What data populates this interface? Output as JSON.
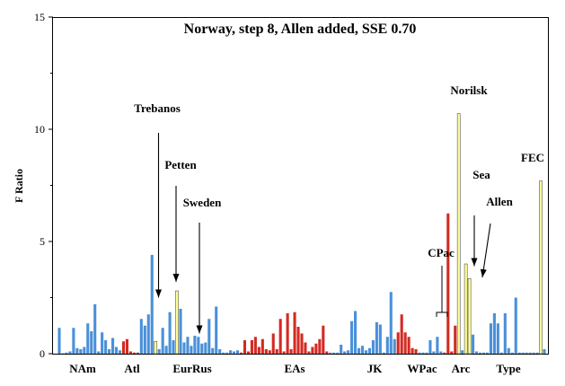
{
  "chart_data": {
    "type": "bar",
    "title": "Norway, step 8, Allen added, SSE 0.70",
    "xlabel": "",
    "ylabel": "F Ratio",
    "ylim": [
      0,
      15
    ],
    "yticks": [
      "0",
      "5",
      "10",
      "15"
    ],
    "grid": false,
    "colors": {
      "blue": "#4a90d9",
      "red": "#d42a22",
      "yellow": "#ffff99"
    },
    "groups": [
      "NAm",
      "Atl",
      "EurRus",
      "EAs",
      "JK",
      "WPac",
      "Arc",
      "Type"
    ],
    "bars": [
      {
        "v": 1.15,
        "c": "blue"
      },
      {
        "v": 0.02,
        "c": "blue"
      },
      {
        "v": 0.05,
        "c": "blue"
      },
      {
        "v": 0.1,
        "c": "blue"
      },
      {
        "v": 1.15,
        "c": "blue"
      },
      {
        "v": 0.25,
        "c": "blue"
      },
      {
        "v": 0.2,
        "c": "blue"
      },
      {
        "v": 0.3,
        "c": "blue"
      },
      {
        "v": 1.35,
        "c": "blue"
      },
      {
        "v": 1.0,
        "c": "blue"
      },
      {
        "v": 2.2,
        "c": "blue"
      },
      {
        "v": 0.1,
        "c": "blue"
      },
      {
        "v": 0.95,
        "c": "blue"
      },
      {
        "v": 0.6,
        "c": "blue"
      },
      {
        "v": 0.2,
        "c": "blue"
      },
      {
        "v": 0.7,
        "c": "blue"
      },
      {
        "v": 0.3,
        "c": "blue"
      },
      {
        "v": 0.15,
        "c": "blue"
      },
      {
        "v": 0.55,
        "c": "red"
      },
      {
        "v": 0.65,
        "c": "red"
      },
      {
        "v": 0.1,
        "c": "red"
      },
      {
        "v": 0.05,
        "c": "red"
      },
      {
        "v": 0.05,
        "c": "red"
      },
      {
        "v": 1.55,
        "c": "blue"
      },
      {
        "v": 1.25,
        "c": "blue"
      },
      {
        "v": 1.75,
        "c": "blue"
      },
      {
        "v": 4.4,
        "c": "blue"
      },
      {
        "v": 0.55,
        "c": "yellow"
      },
      {
        "v": 0.2,
        "c": "blue"
      },
      {
        "v": 1.15,
        "c": "blue"
      },
      {
        "v": 0.35,
        "c": "blue"
      },
      {
        "v": 1.85,
        "c": "blue"
      },
      {
        "v": 0.6,
        "c": "blue"
      },
      {
        "v": 2.8,
        "c": "yellow"
      },
      {
        "v": 2.0,
        "c": "blue"
      },
      {
        "v": 0.5,
        "c": "blue"
      },
      {
        "v": 0.75,
        "c": "blue"
      },
      {
        "v": 0.35,
        "c": "blue"
      },
      {
        "v": 0.8,
        "c": "blue"
      },
      {
        "v": 0.75,
        "c": "blue"
      },
      {
        "v": 0.45,
        "c": "blue"
      },
      {
        "v": 0.5,
        "c": "blue"
      },
      {
        "v": 1.55,
        "c": "blue"
      },
      {
        "v": 0.25,
        "c": "blue"
      },
      {
        "v": 2.1,
        "c": "blue"
      },
      {
        "v": 0.2,
        "c": "blue"
      },
      {
        "v": 0.05,
        "c": "blue"
      },
      {
        "v": 0.05,
        "c": "blue"
      },
      {
        "v": 0.15,
        "c": "blue"
      },
      {
        "v": 0.1,
        "c": "blue"
      },
      {
        "v": 0.15,
        "c": "blue"
      },
      {
        "v": 0.05,
        "c": "red"
      },
      {
        "v": 0.6,
        "c": "red"
      },
      {
        "v": 0.1,
        "c": "red"
      },
      {
        "v": 0.6,
        "c": "red"
      },
      {
        "v": 0.75,
        "c": "red"
      },
      {
        "v": 0.3,
        "c": "red"
      },
      {
        "v": 0.65,
        "c": "red"
      },
      {
        "v": 0.2,
        "c": "red"
      },
      {
        "v": 0.15,
        "c": "red"
      },
      {
        "v": 0.9,
        "c": "red"
      },
      {
        "v": 0.2,
        "c": "red"
      },
      {
        "v": 1.55,
        "c": "red"
      },
      {
        "v": 0.1,
        "c": "red"
      },
      {
        "v": 1.8,
        "c": "red"
      },
      {
        "v": 0.2,
        "c": "red"
      },
      {
        "v": 1.85,
        "c": "red"
      },
      {
        "v": 1.2,
        "c": "red"
      },
      {
        "v": 0.9,
        "c": "red"
      },
      {
        "v": 0.5,
        "c": "red"
      },
      {
        "v": 0.1,
        "c": "red"
      },
      {
        "v": 0.3,
        "c": "red"
      },
      {
        "v": 0.45,
        "c": "red"
      },
      {
        "v": 0.65,
        "c": "red"
      },
      {
        "v": 1.25,
        "c": "red"
      },
      {
        "v": 0.1,
        "c": "red"
      },
      {
        "v": 0.05,
        "c": "blue"
      },
      {
        "v": 0.05,
        "c": "blue"
      },
      {
        "v": 0.05,
        "c": "blue"
      },
      {
        "v": 0.4,
        "c": "blue"
      },
      {
        "v": 0.1,
        "c": "blue"
      },
      {
        "v": 0.15,
        "c": "blue"
      },
      {
        "v": 1.45,
        "c": "blue"
      },
      {
        "v": 1.9,
        "c": "blue"
      },
      {
        "v": 0.25,
        "c": "blue"
      },
      {
        "v": 0.35,
        "c": "blue"
      },
      {
        "v": 0.15,
        "c": "blue"
      },
      {
        "v": 0.25,
        "c": "blue"
      },
      {
        "v": 0.6,
        "c": "blue"
      },
      {
        "v": 1.4,
        "c": "blue"
      },
      {
        "v": 1.3,
        "c": "blue"
      },
      {
        "v": 0.05,
        "c": "blue"
      },
      {
        "v": 0.75,
        "c": "blue"
      },
      {
        "v": 2.75,
        "c": "blue"
      },
      {
        "v": 0.65,
        "c": "blue"
      },
      {
        "v": 0.95,
        "c": "red"
      },
      {
        "v": 1.75,
        "c": "red"
      },
      {
        "v": 0.95,
        "c": "red"
      },
      {
        "v": 0.75,
        "c": "red"
      },
      {
        "v": 0.25,
        "c": "red"
      },
      {
        "v": 0.2,
        "c": "red"
      },
      {
        "v": 0.05,
        "c": "blue"
      },
      {
        "v": 0.05,
        "c": "blue"
      },
      {
        "v": 0.05,
        "c": "blue"
      },
      {
        "v": 0.6,
        "c": "blue"
      },
      {
        "v": 0.1,
        "c": "blue"
      },
      {
        "v": 0.75,
        "c": "blue"
      },
      {
        "v": 0.1,
        "c": "blue"
      },
      {
        "v": 0.05,
        "c": "red"
      },
      {
        "v": 6.25,
        "c": "red"
      },
      {
        "v": 0.1,
        "c": "red"
      },
      {
        "v": 1.25,
        "c": "red"
      },
      {
        "v": 10.7,
        "c": "yellow"
      },
      {
        "v": 0.15,
        "c": "blue"
      },
      {
        "v": 4.0,
        "c": "yellow"
      },
      {
        "v": 3.35,
        "c": "yellow"
      },
      {
        "v": 0.85,
        "c": "blue"
      },
      {
        "v": 0.1,
        "c": "blue"
      },
      {
        "v": 0.05,
        "c": "blue"
      },
      {
        "v": 0.05,
        "c": "blue"
      },
      {
        "v": 0.05,
        "c": "blue"
      },
      {
        "v": 1.35,
        "c": "blue"
      },
      {
        "v": 1.8,
        "c": "blue"
      },
      {
        "v": 1.35,
        "c": "blue"
      },
      {
        "v": 0.05,
        "c": "blue"
      },
      {
        "v": 1.8,
        "c": "blue"
      },
      {
        "v": 0.25,
        "c": "blue"
      },
      {
        "v": 0.05,
        "c": "blue"
      },
      {
        "v": 2.5,
        "c": "blue"
      },
      {
        "v": 0.05,
        "c": "blue"
      },
      {
        "v": 0.05,
        "c": "blue"
      },
      {
        "v": 0.05,
        "c": "blue"
      },
      {
        "v": 0.05,
        "c": "blue"
      },
      {
        "v": 0.05,
        "c": "blue"
      },
      {
        "v": 0.05,
        "c": "blue"
      },
      {
        "v": 7.7,
        "c": "yellow"
      },
      {
        "v": 0.2,
        "c": "blue"
      }
    ],
    "annotations": [
      {
        "text": "Trebanos",
        "y_at": 2.5
      },
      {
        "text": "Petten",
        "y_at": 3.2
      },
      {
        "text": "Sweden",
        "y_at": 0.9
      },
      {
        "text": "Norilsk",
        "y_at": 10.8
      },
      {
        "text": "Sea",
        "y_at": 3.9
      },
      {
        "text": "Allen",
        "y_at": 3.4
      },
      {
        "text": "CPac",
        "y_at": 1.8
      },
      {
        "text": "FEC",
        "y_at": 7.8
      }
    ]
  }
}
